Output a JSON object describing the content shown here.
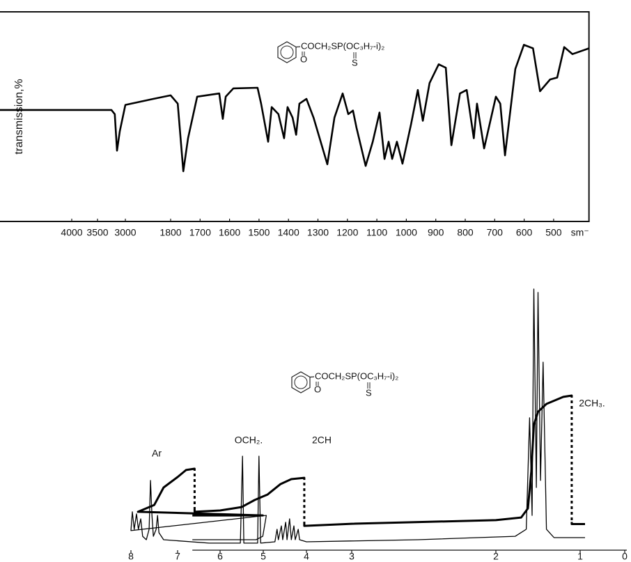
{
  "chart_data": [
    {
      "type": "line",
      "frame": true,
      "y_label": "transmission,%",
      "x_unit": "sm⁻",
      "formula": {
        "chain": "COCH₂SP(OC₃H₇-i)₂",
        "carbonyl": "O",
        "thio": "S"
      },
      "xlim": [
        4280,
        380
      ],
      "xticks": [
        4000,
        3500,
        3000,
        1800,
        1700,
        1600,
        1500,
        1400,
        1300,
        1200,
        1100,
        1000,
        900,
        800,
        700,
        600,
        500
      ],
      "ylim": [
        34,
        100
      ],
      "yticks": [
        40,
        60,
        80,
        100
      ],
      "series": [
        {
          "color": "#000000",
          "x": [
            4280,
            3250,
            3190,
            3150,
            3100,
            3000,
            2260,
            1800,
            1776,
            1757,
            1741,
            1710,
            1635,
            1623,
            1613,
            1587,
            1505,
            1493,
            1469,
            1457,
            1434,
            1415,
            1403,
            1386,
            1374,
            1363,
            1339,
            1315,
            1268,
            1244,
            1216,
            1197,
            1181,
            1169,
            1138,
            1114,
            1091,
            1074,
            1060,
            1048,
            1032,
            1013,
            984,
            961,
            944,
            921,
            890,
            866,
            847,
            818,
            795,
            771,
            760,
            736,
            696,
            681,
            665,
            630,
            601,
            570,
            546,
            512,
            488,
            464,
            436,
            380
          ],
          "values": [
            69.1,
            69.1,
            67.8,
            56.3,
            62.4,
            70.7,
            72.6,
            73.7,
            71.1,
            49.8,
            60.2,
            73.3,
            74.3,
            66.3,
            73.3,
            75.9,
            76.1,
            71.1,
            59.1,
            70.0,
            67.8,
            60.2,
            70.0,
            66.7,
            61.3,
            71.1,
            72.6,
            66.7,
            52.0,
            66.7,
            74.3,
            67.8,
            68.9,
            63.5,
            51.5,
            59.1,
            68.3,
            53.7,
            59.1,
            53.7,
            59.1,
            52.2,
            64.6,
            75.4,
            65.7,
            77.6,
            83.5,
            82.4,
            58.0,
            74.3,
            75.4,
            60.2,
            71.1,
            57.0,
            73.3,
            71.1,
            54.8,
            82.0,
            89.6,
            88.5,
            75.0,
            78.7,
            79.3,
            88.9,
            86.7,
            88.5
          ]
        }
      ]
    },
    {
      "type": "line",
      "frame": false,
      "formula": {
        "chain": "COCH₂SP(OC₃H₇-i)₂",
        "carbonyl": "O",
        "thio": "S"
      },
      "annotations": [
        "Ar",
        "OCH₂.",
        "2CH",
        "2CH₃."
      ],
      "xlim": [
        9.7,
        0
      ],
      "xticks": [
        8,
        7,
        6,
        5,
        4,
        3,
        2,
        1,
        0
      ],
      "ylim": [
        0,
        100
      ],
      "series": [
        {
          "color": "#000000",
          "x": [
            9.7,
            8.27,
            8.12,
            8.04,
            8.0,
            7.97,
            7.93,
            7.88,
            7.84,
            7.79,
            7.75,
            7.67,
            7.61,
            7.58,
            7.55,
            7.52,
            7.46,
            7.43,
            7.4,
            7.3,
            6.26,
            5.53,
            5.48,
            5.45,
            5.13,
            5.1,
            5.06,
            4.73,
            4.68,
            4.65,
            4.58,
            4.55,
            4.48,
            4.45,
            4.39,
            4.35,
            4.29,
            4.26,
            4.19,
            4.16,
            4.0,
            2.54,
            1.77,
            1.64,
            1.6,
            1.57,
            1.55,
            1.52,
            1.5,
            1.47,
            1.44,
            1.4,
            1.31,
            0.89
          ],
          "values": [
            4,
            4,
            5.3,
            13.3,
            7.5,
            14.7,
            8,
            13.9,
            8,
            12,
            5.3,
            4,
            8,
            26.7,
            13.3,
            5.3,
            8,
            13.3,
            6.7,
            4,
            2.7,
            2.7,
            36,
            2.7,
            2.7,
            36,
            2.7,
            3.2,
            8,
            4,
            9.3,
            4,
            10.7,
            4,
            12,
            4,
            9.3,
            4,
            8,
            4,
            3.2,
            4,
            5.3,
            8,
            50.7,
            13.3,
            100,
            24,
            98.7,
            26.7,
            72,
            8,
            4.8,
            4.8
          ]
        },
        {
          "color": "#000000",
          "x": [
            9.7,
            8.12,
            7.85,
            7.5,
            7.3,
            7.0,
            6.8,
            6.6,
            6.6,
            6.0,
            5.5,
            5.2,
            4.9,
            4.6,
            4.35,
            4.05,
            4.05,
            3.0,
            2.0,
            1.7,
            1.62,
            1.58,
            1.55,
            1.5,
            1.4,
            1.2,
            1.1,
            1.1,
            0.89
          ],
          "values": [
            13.3,
            13.3,
            14.7,
            17.3,
            24,
            28,
            30.7,
            31.2,
            14.7,
            15.2,
            16.5,
            19.2,
            21.3,
            25.3,
            27.2,
            27.7,
            9.3,
            10.1,
            11.5,
            12.5,
            16,
            30,
            48,
            53,
            56,
            58.7,
            59.2,
            10,
            10
          ]
        }
      ]
    }
  ]
}
